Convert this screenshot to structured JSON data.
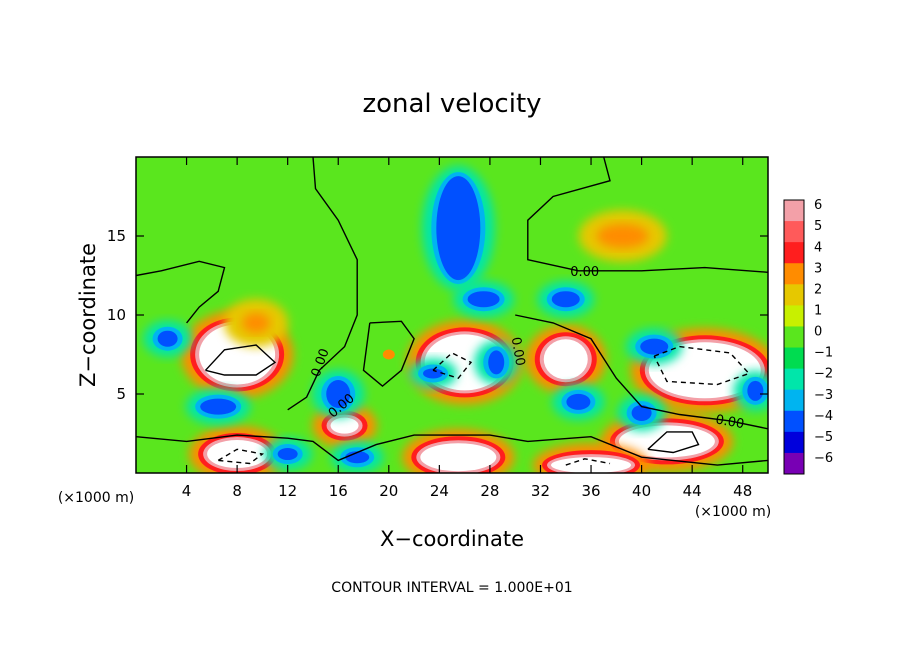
{
  "chart_data": {
    "type": "heatmap",
    "title": "zonal velocity",
    "xlabel": "X−coordinate",
    "ylabel": "Z−coordinate",
    "x_unit_label": "(×1000 m)",
    "y_unit_label": "(×1000 m)",
    "footer": "CONTOUR INTERVAL = 1.000E+01",
    "xlim": [
      0,
      50
    ],
    "ylim": [
      0,
      20
    ],
    "x_ticks": [
      4,
      8,
      12,
      16,
      20,
      24,
      28,
      32,
      36,
      40,
      44,
      48
    ],
    "y_ticks": [
      5,
      10,
      15
    ],
    "contour_labels": [
      {
        "text": "0.00",
        "x": 35.5,
        "y": 12.8
      },
      {
        "text": "0.00",
        "x": 14.5,
        "y": 7.0
      },
      {
        "text": "0.00",
        "x": 16.2,
        "y": 4.3
      },
      {
        "text": "0.00",
        "x": 30.3,
        "y": 7.7
      },
      {
        "text": "0.00",
        "x": 47.0,
        "y": 3.3
      }
    ],
    "colorbar": {
      "ticks": [
        "6",
        "5",
        "4",
        "3",
        "2",
        "1",
        "0",
        "−1",
        "−2",
        "−3",
        "−4",
        "−5",
        "−6"
      ],
      "colors": [
        "#f3a0a8",
        "#ff5a5a",
        "#ff1e1e",
        "#ff8c00",
        "#e6c800",
        "#c8f000",
        "#5ae61e",
        "#00dc50",
        "#00e6aa",
        "#00b4f0",
        "#0050ff",
        "#0000dc",
        "#7800b4"
      ]
    },
    "features": [
      {
        "kind": "high",
        "x": 8.0,
        "y": 7.5
      },
      {
        "kind": "high",
        "x": 9.5,
        "y": 9.5
      },
      {
        "kind": "high",
        "x": 38.5,
        "y": 15.0
      },
      {
        "kind": "high",
        "x": 26.0,
        "y": 7.0
      },
      {
        "kind": "high",
        "x": 34.0,
        "y": 7.2
      },
      {
        "kind": "high",
        "x": 45.0,
        "y": 6.5
      },
      {
        "kind": "high",
        "x": 42.0,
        "y": 2.0
      },
      {
        "kind": "high",
        "x": 8.0,
        "y": 1.2
      },
      {
        "kind": "high",
        "x": 25.5,
        "y": 1.0
      },
      {
        "kind": "high",
        "x": 36.0,
        "y": 0.5
      },
      {
        "kind": "high",
        "x": 16.5,
        "y": 3.0
      },
      {
        "kind": "high",
        "x": 20.0,
        "y": 7.5
      },
      {
        "kind": "low",
        "x": 25.5,
        "y": 15.5
      },
      {
        "kind": "low",
        "x": 27.5,
        "y": 11.0
      },
      {
        "kind": "low",
        "x": 34.0,
        "y": 11.0
      },
      {
        "kind": "low",
        "x": 16.0,
        "y": 5.0
      },
      {
        "kind": "low",
        "x": 2.5,
        "y": 8.5
      },
      {
        "kind": "low",
        "x": 6.5,
        "y": 4.2
      },
      {
        "kind": "low",
        "x": 17.5,
        "y": 1.0
      },
      {
        "kind": "low",
        "x": 23.5,
        "y": 6.3
      },
      {
        "kind": "low",
        "x": 28.5,
        "y": 7.0
      },
      {
        "kind": "low",
        "x": 41.0,
        "y": 8.0
      },
      {
        "kind": "low",
        "x": 12.0,
        "y": 1.2
      },
      {
        "kind": "low",
        "x": 35.0,
        "y": 4.5
      },
      {
        "kind": "low",
        "x": 40.0,
        "y": 3.8
      },
      {
        "kind": "low",
        "x": 49.0,
        "y": 5.2
      }
    ]
  }
}
